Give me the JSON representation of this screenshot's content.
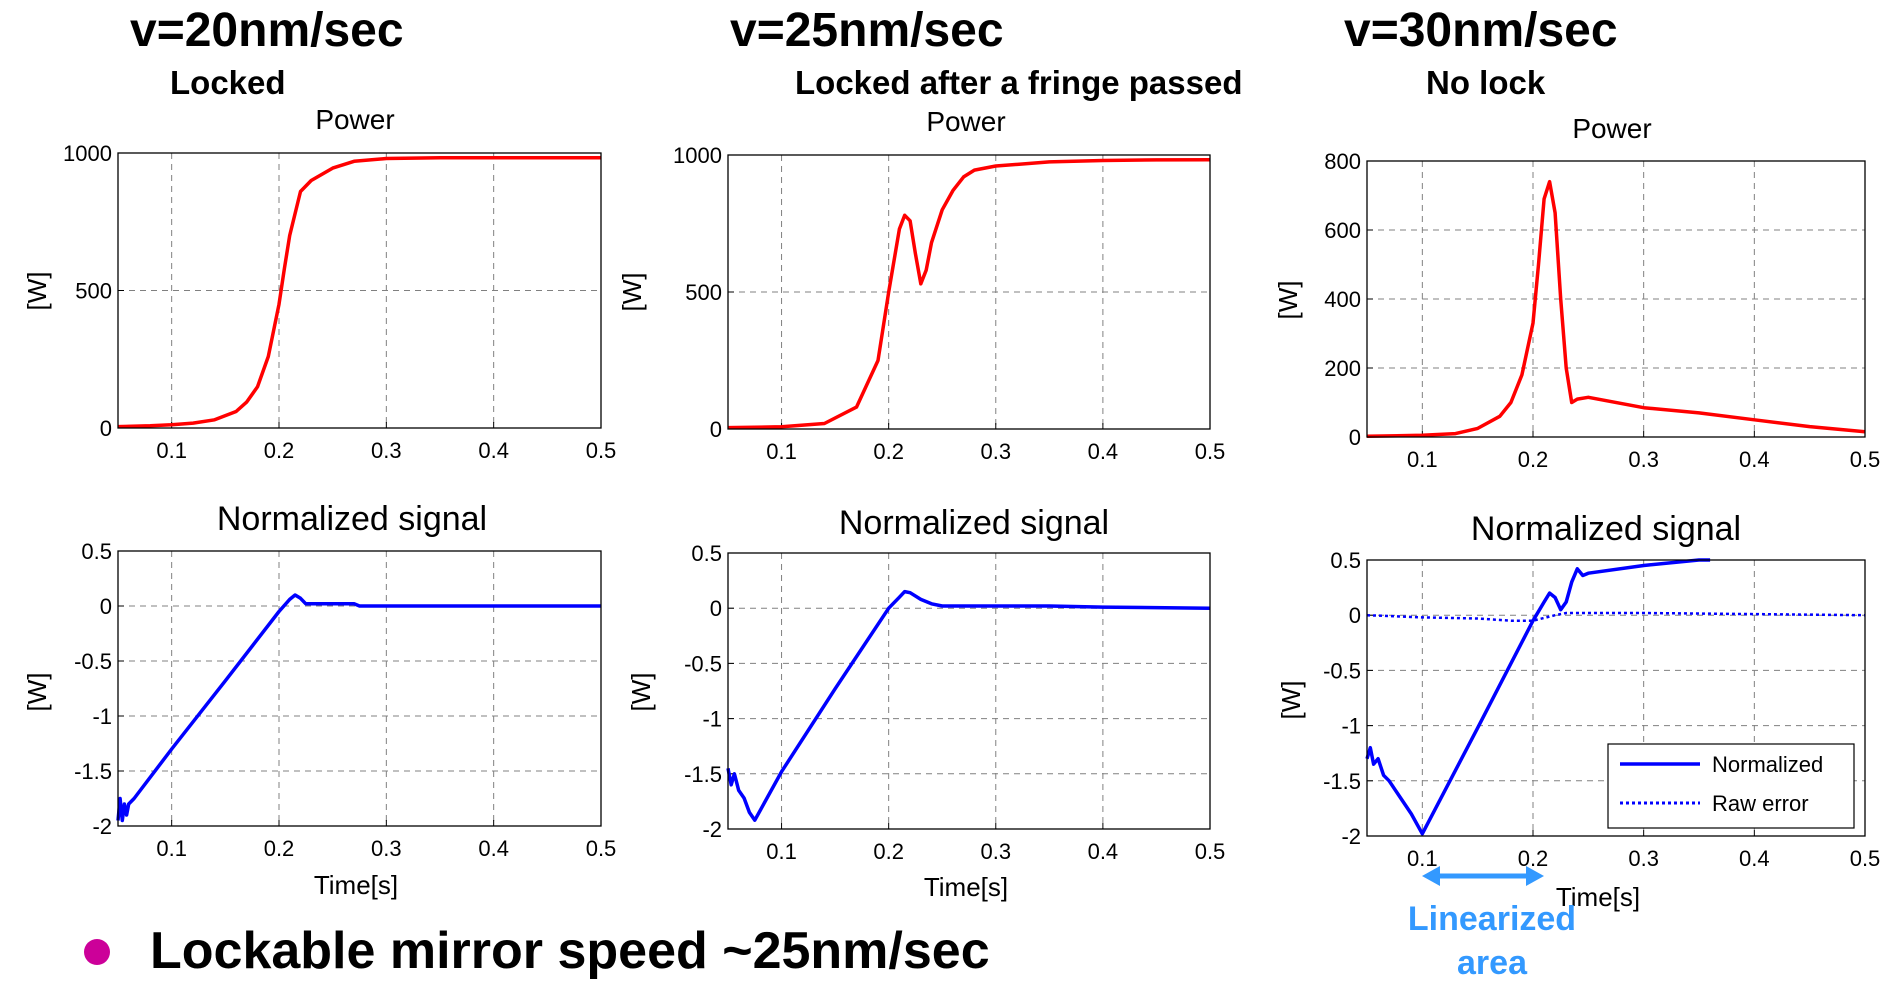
{
  "headers": [
    {
      "speed": "v=20nm/sec",
      "status": "Locked"
    },
    {
      "speed": "v=25nm/sec",
      "status": "Locked after a fringe passed"
    },
    {
      "speed": "v=30nm/sec",
      "status": "No lock"
    }
  ],
  "bullet": {
    "text": "Lockable mirror speed ~25nm/sec"
  },
  "annotation": {
    "line1": "Linearized",
    "line2": "area",
    "x_range": [
      0.1,
      0.2
    ]
  },
  "colors": {
    "power": "#ff0000",
    "signal": "#0000ff",
    "grid": "#808080",
    "bullet": "#cc0099",
    "annotation": "#3399ff"
  },
  "legend": {
    "items": [
      "Normalized",
      "Raw error"
    ],
    "placement": "bottom-right"
  },
  "chart_data": [
    {
      "type": "line",
      "title": "Power",
      "xlabel": "",
      "ylabel": "[W]",
      "xlim": [
        0.05,
        0.5
      ],
      "ylim": [
        0,
        1000
      ],
      "grid": true,
      "xticks": [
        "0.1",
        "0.2",
        "0.3",
        "0.4",
        "0.5"
      ],
      "yticks": [
        "0",
        "500",
        "1000"
      ],
      "series": [
        {
          "x": [
            0.05,
            0.08,
            0.1,
            0.12,
            0.14,
            0.16,
            0.17,
            0.18,
            0.19,
            0.2,
            0.205,
            0.21,
            0.22,
            0.23,
            0.25,
            0.27,
            0.3,
            0.35,
            0.4,
            0.45,
            0.5
          ],
          "values": [
            5,
            8,
            12,
            18,
            30,
            60,
            95,
            150,
            260,
            450,
            580,
            700,
            860,
            900,
            945,
            970,
            980,
            983,
            983,
            983,
            983
          ]
        }
      ]
    },
    {
      "type": "line",
      "title": "Power",
      "xlabel": "",
      "ylabel": "[W]",
      "xlim": [
        0.05,
        0.5
      ],
      "ylim": [
        0,
        1000
      ],
      "grid": true,
      "xticks": [
        "0.1",
        "0.2",
        "0.3",
        "0.4",
        "0.5"
      ],
      "yticks": [
        "0",
        "500",
        "1000"
      ],
      "series": [
        {
          "x": [
            0.05,
            0.1,
            0.14,
            0.17,
            0.19,
            0.2,
            0.21,
            0.215,
            0.22,
            0.225,
            0.23,
            0.235,
            0.24,
            0.25,
            0.26,
            0.27,
            0.28,
            0.3,
            0.35,
            0.4,
            0.45,
            0.5
          ],
          "values": [
            5,
            8,
            20,
            80,
            250,
            500,
            730,
            780,
            760,
            640,
            530,
            580,
            680,
            800,
            870,
            920,
            945,
            960,
            975,
            980,
            982,
            983
          ]
        }
      ]
    },
    {
      "type": "line",
      "title": "Power",
      "xlabel": "",
      "ylabel": "[W]",
      "xlim": [
        0.05,
        0.5
      ],
      "ylim": [
        0,
        800
      ],
      "grid": true,
      "xticks": [
        "0.1",
        "0.2",
        "0.3",
        "0.4",
        "0.5"
      ],
      "yticks": [
        "0",
        "200",
        "400",
        "600",
        "800"
      ],
      "series": [
        {
          "x": [
            0.05,
            0.1,
            0.13,
            0.15,
            0.17,
            0.18,
            0.19,
            0.2,
            0.205,
            0.21,
            0.215,
            0.22,
            0.225,
            0.23,
            0.235,
            0.24,
            0.25,
            0.3,
            0.35,
            0.4,
            0.45,
            0.5
          ],
          "values": [
            2,
            5,
            10,
            25,
            60,
            100,
            180,
            330,
            500,
            690,
            740,
            650,
            400,
            200,
            100,
            110,
            115,
            85,
            70,
            50,
            30,
            15
          ]
        }
      ]
    },
    {
      "type": "line",
      "title": "Normalized signal",
      "xlabel": "Time[s]",
      "ylabel": "[W]",
      "xlim": [
        0.05,
        0.5
      ],
      "ylim": [
        -2,
        0.5
      ],
      "grid": true,
      "xticks": [
        "0.1",
        "0.2",
        "0.3",
        "0.4",
        "0.5"
      ],
      "yticks": [
        "-2",
        "-1.5",
        "-1",
        "-0.5",
        "0",
        "0.5"
      ],
      "series": [
        {
          "x": [
            0.05,
            0.052,
            0.054,
            0.056,
            0.058,
            0.06,
            0.065,
            0.1,
            0.15,
            0.2,
            0.21,
            0.215,
            0.22,
            0.225,
            0.25,
            0.27,
            0.275,
            0.3,
            0.4,
            0.5
          ],
          "values": [
            -1.95,
            -1.75,
            -1.95,
            -1.8,
            -1.9,
            -1.8,
            -1.75,
            -1.3,
            -0.68,
            -0.05,
            0.06,
            0.1,
            0.07,
            0.02,
            0.02,
            0.02,
            0.0,
            0.0,
            0.0,
            0.0
          ]
        }
      ]
    },
    {
      "type": "line",
      "title": "Normalized signal",
      "xlabel": "Time[s]",
      "ylabel": "[W]",
      "xlim": [
        0.05,
        0.5
      ],
      "ylim": [
        -2,
        0.5
      ],
      "grid": true,
      "xticks": [
        "0.1",
        "0.2",
        "0.3",
        "0.4",
        "0.5"
      ],
      "yticks": [
        "-2",
        "-1.5",
        "-1",
        "-0.5",
        "0",
        "0.5"
      ],
      "series": [
        {
          "x": [
            0.05,
            0.053,
            0.056,
            0.06,
            0.065,
            0.07,
            0.075,
            0.1,
            0.15,
            0.2,
            0.21,
            0.215,
            0.22,
            0.23,
            0.24,
            0.25,
            0.3,
            0.35,
            0.4,
            0.5
          ],
          "values": [
            -1.45,
            -1.6,
            -1.5,
            -1.65,
            -1.72,
            -1.85,
            -1.92,
            -1.48,
            -0.73,
            0.0,
            0.1,
            0.15,
            0.14,
            0.08,
            0.04,
            0.02,
            0.02,
            0.02,
            0.01,
            0.0
          ]
        }
      ]
    },
    {
      "type": "line",
      "title": "Normalized signal",
      "xlabel": "Time[s]",
      "ylabel": "[W]",
      "xlim": [
        0.05,
        0.5
      ],
      "ylim": [
        -2,
        0.5
      ],
      "grid": true,
      "xticks": [
        "0.1",
        "0.2",
        "0.3",
        "0.4",
        "0.5"
      ],
      "yticks": [
        "-2",
        "-1.5",
        "-1",
        "-0.5",
        "0",
        "0.5"
      ],
      "series": [
        {
          "name": "Normalized",
          "x": [
            0.05,
            0.053,
            0.056,
            0.06,
            0.065,
            0.07,
            0.08,
            0.09,
            0.1,
            0.15,
            0.2,
            0.21,
            0.215,
            0.22,
            0.225,
            0.23,
            0.235,
            0.24,
            0.245,
            0.25,
            0.3,
            0.35,
            0.36
          ],
          "values": [
            -1.3,
            -1.2,
            -1.35,
            -1.3,
            -1.45,
            -1.5,
            -1.65,
            -1.8,
            -1.98,
            -1.02,
            -0.05,
            0.12,
            0.2,
            0.16,
            0.05,
            0.12,
            0.3,
            0.42,
            0.36,
            0.38,
            0.45,
            0.5,
            0.5
          ]
        },
        {
          "name": "Raw error",
          "x": [
            0.05,
            0.1,
            0.15,
            0.18,
            0.2,
            0.22,
            0.23,
            0.3,
            0.4,
            0.5
          ],
          "values": [
            0.0,
            -0.02,
            -0.03,
            -0.05,
            -0.05,
            0.0,
            0.02,
            0.02,
            0.01,
            0.0
          ]
        }
      ]
    }
  ]
}
